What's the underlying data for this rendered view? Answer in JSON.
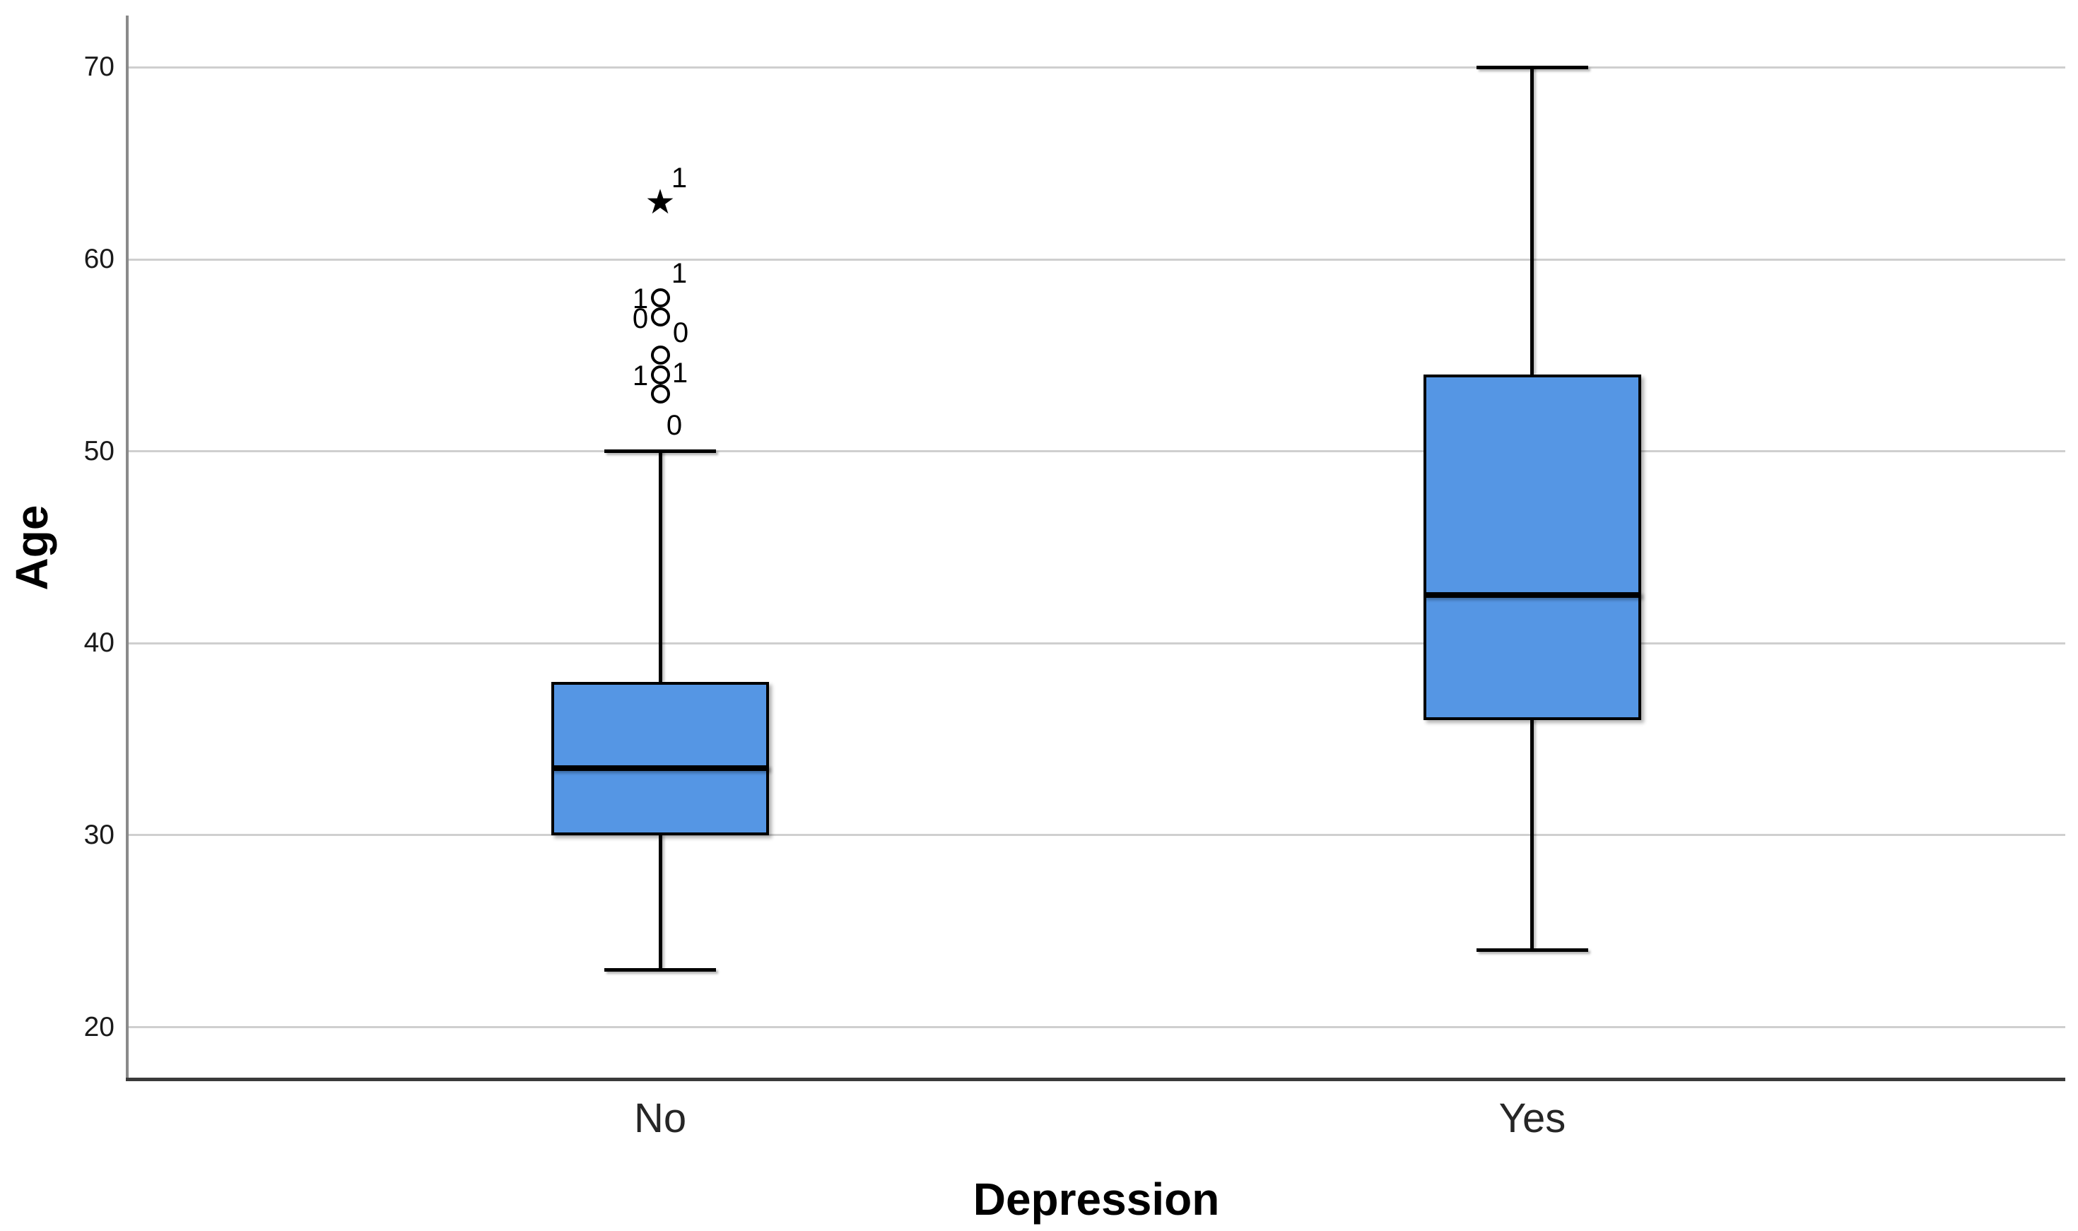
{
  "chart_data": {
    "type": "boxplot",
    "title": "",
    "ylabel": "Age",
    "xlabel": "Depression",
    "y_ticks": [
      20,
      30,
      40,
      50,
      60,
      70
    ],
    "y_axis_range": [
      17.3,
      72.7
    ],
    "grid": true,
    "legend": "none",
    "categories": [
      "No",
      "Yes"
    ],
    "series": [
      {
        "category": "No",
        "min": 23,
        "q1": 30,
        "median": 33.5,
        "q3": 38,
        "max": 50,
        "outliers": [
          {
            "value": 63,
            "marker": "star",
            "labels": [
              {
                "text": "1",
                "pos": "upper-right"
              }
            ]
          },
          {
            "value": 58,
            "marker": "circle",
            "labels": [
              {
                "text": "1",
                "pos": "left"
              },
              {
                "text": "1",
                "pos": "upper-right"
              }
            ]
          },
          {
            "value": 57,
            "marker": "circle",
            "labels": [
              {
                "text": "0",
                "pos": "left"
              },
              {
                "text": "0",
                "pos": "lower-right"
              }
            ]
          },
          {
            "value": 55,
            "marker": "circle",
            "labels": []
          },
          {
            "value": 54,
            "marker": "circle",
            "labels": [
              {
                "text": "1",
                "pos": "left"
              },
              {
                "text": "1",
                "pos": "right"
              }
            ]
          },
          {
            "value": 53,
            "marker": "circle",
            "labels": [
              {
                "text": "0",
                "pos": "below"
              }
            ]
          }
        ]
      },
      {
        "category": "Yes",
        "min": 24,
        "q1": 36,
        "median": 42.5,
        "q3": 54,
        "max": 70,
        "outliers": []
      }
    ],
    "colors": {
      "box_fill": "#5596E4",
      "box_border": "#000000",
      "median": "#000000",
      "whisker": "#000000",
      "gridline": "#CFCFCF",
      "y_axis_line": "#8A8A8A",
      "x_axis_line": "#3A3A3A",
      "tick_label": "#1A1A1A",
      "category_label": "#262626",
      "outlier": "#000000",
      "title": "#000000"
    }
  }
}
